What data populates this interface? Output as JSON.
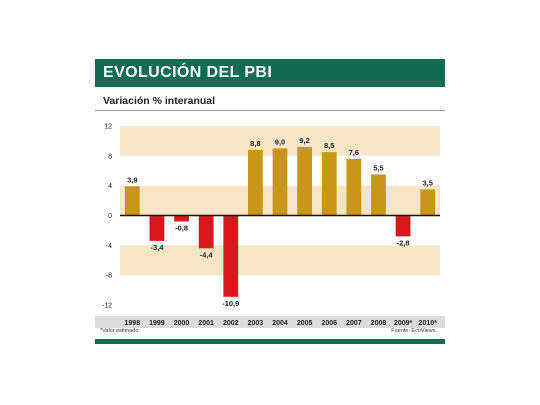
{
  "header": {
    "title": "EVOLUCIÓN DEL PBI",
    "subtitle": "Variación % interanual"
  },
  "footer": {
    "note": "*Valor estimado",
    "source": "Fuente: EcoViews."
  },
  "colors": {
    "positive": "#c9961a",
    "negative": "#d9181e",
    "band": "#f5e7c6",
    "brand": "#0f6b52"
  },
  "chart_data": {
    "type": "bar",
    "categories": [
      "1998",
      "1999",
      "2000",
      "2001",
      "2002",
      "2003",
      "2004",
      "2005",
      "2006",
      "2007",
      "2008",
      "2009*",
      "2010*"
    ],
    "values": [
      3.9,
      -3.4,
      -0.8,
      -4.4,
      -10.9,
      8.8,
      9.0,
      9.2,
      8.5,
      7.6,
      5.5,
      -2.8,
      3.5
    ],
    "value_labels": [
      "3,9",
      "-3,4",
      "-0,8",
      "-4,4",
      "-10,9",
      "8,8",
      "9,0",
      "9,2",
      "8,5",
      "7,6",
      "5,5",
      "-2,8",
      "3,5"
    ],
    "yticks": [
      12,
      8,
      4,
      0,
      -4,
      -8,
      -12
    ],
    "ylim": [
      -12,
      12
    ],
    "title": "EVOLUCIÓN DEL PBI",
    "subtitle": "Variación % interanual",
    "grid": false
  }
}
